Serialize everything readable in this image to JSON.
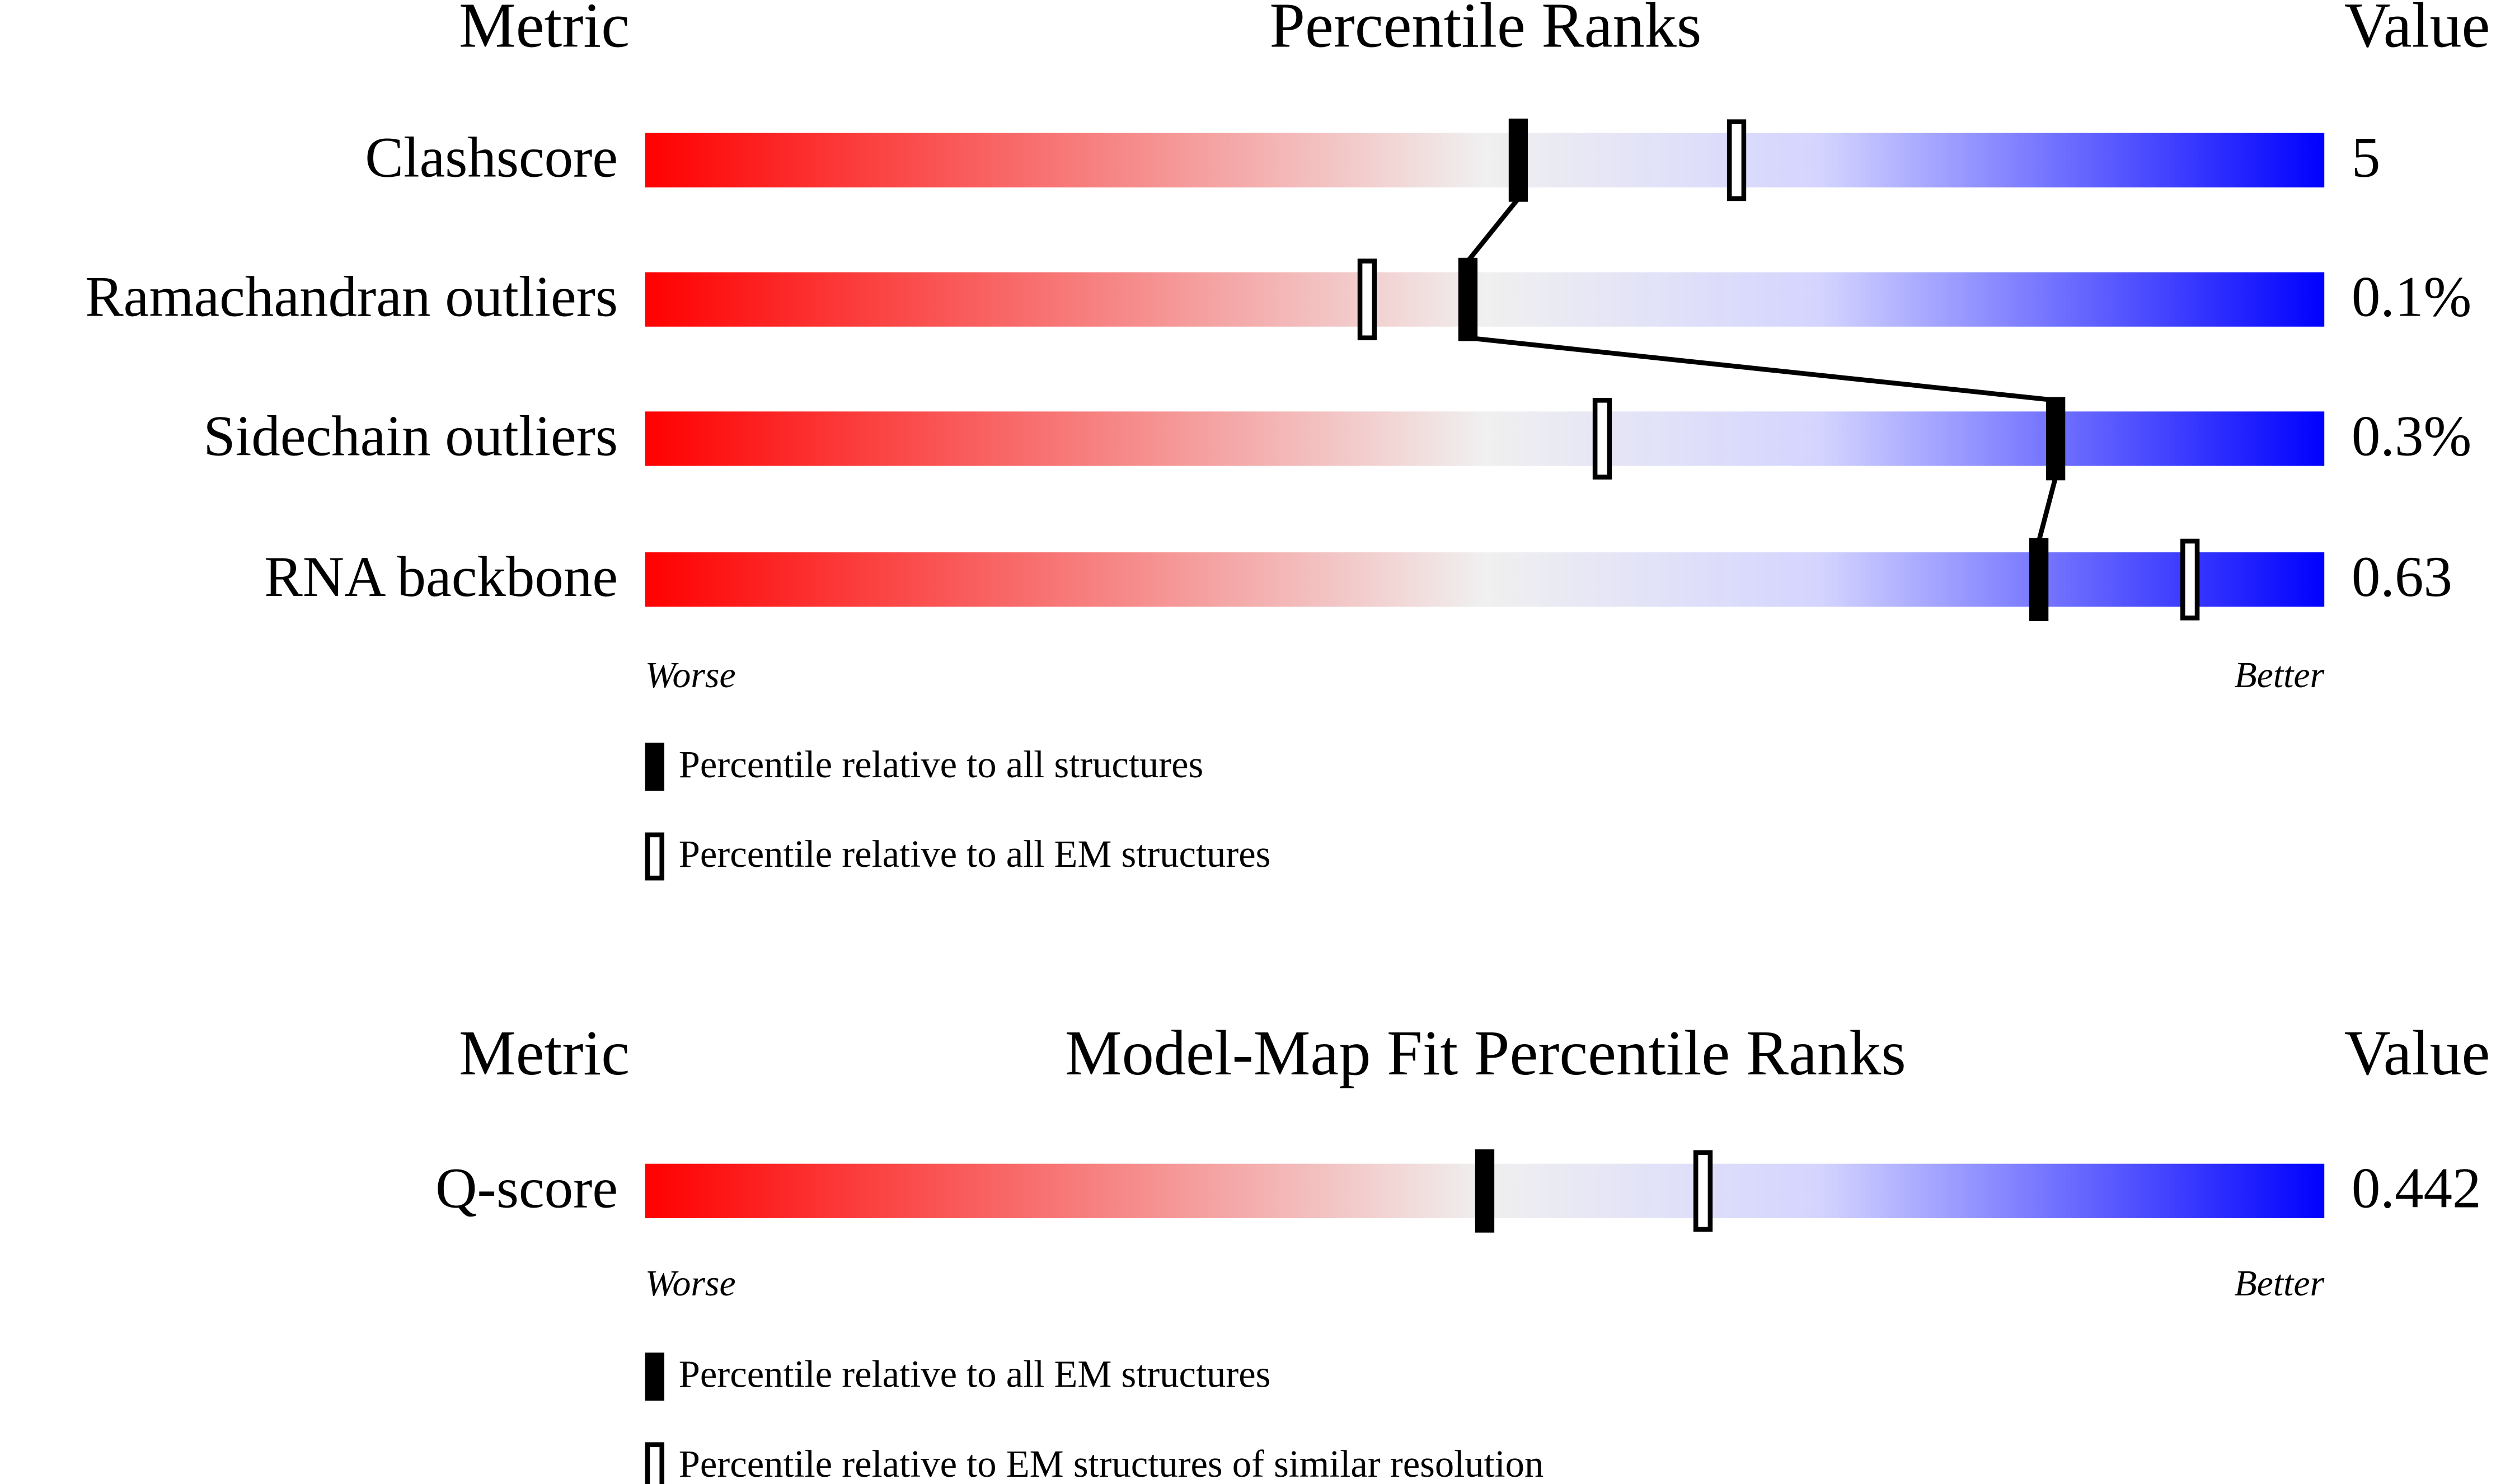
{
  "chart_data": [
    {
      "type": "percentile-slider",
      "metric_header": "Metric",
      "title": "Percentile Ranks",
      "value_header": "Value",
      "categories": [
        "Clashscore",
        "Ramachandran outliers",
        "Sidechain outliers",
        "RNA backbone"
      ],
      "metric_values": [
        "5",
        "0.1%",
        "0.3%",
        "0.63"
      ],
      "low_label": "Worse",
      "high_label": "Better",
      "xlim": [
        0,
        100
      ],
      "gradient": [
        "#ff0000",
        "#f0f0f0",
        "#d4d4ff",
        "#0000ff"
      ],
      "series": [
        {
          "name": "Percentile relative to all structures",
          "marker": "filled",
          "connected": true,
          "color": "#000000",
          "values": [
            52,
            49,
            84,
            83
          ]
        },
        {
          "name": "Percentile relative to all EM structures",
          "marker": "open",
          "connected": false,
          "color": "#000000",
          "values": [
            65,
            43,
            57,
            92
          ]
        }
      ]
    },
    {
      "type": "percentile-slider",
      "metric_header": "Metric",
      "title": "Model-Map Fit Percentile Ranks",
      "value_header": "Value",
      "categories": [
        "Q-score"
      ],
      "metric_values": [
        "0.442"
      ],
      "low_label": "Worse",
      "high_label": "Better",
      "xlim": [
        0,
        100
      ],
      "gradient": [
        "#ff0000",
        "#f0f0f0",
        "#d4d4ff",
        "#0000ff"
      ],
      "series": [
        {
          "name": "Percentile relative to all EM structures",
          "marker": "filled",
          "connected": true,
          "color": "#000000",
          "values": [
            50
          ]
        },
        {
          "name": "Percentile relative to EM structures of similar resolution",
          "marker": "open",
          "connected": false,
          "color": "#000000",
          "values": [
            63
          ]
        }
      ]
    }
  ]
}
